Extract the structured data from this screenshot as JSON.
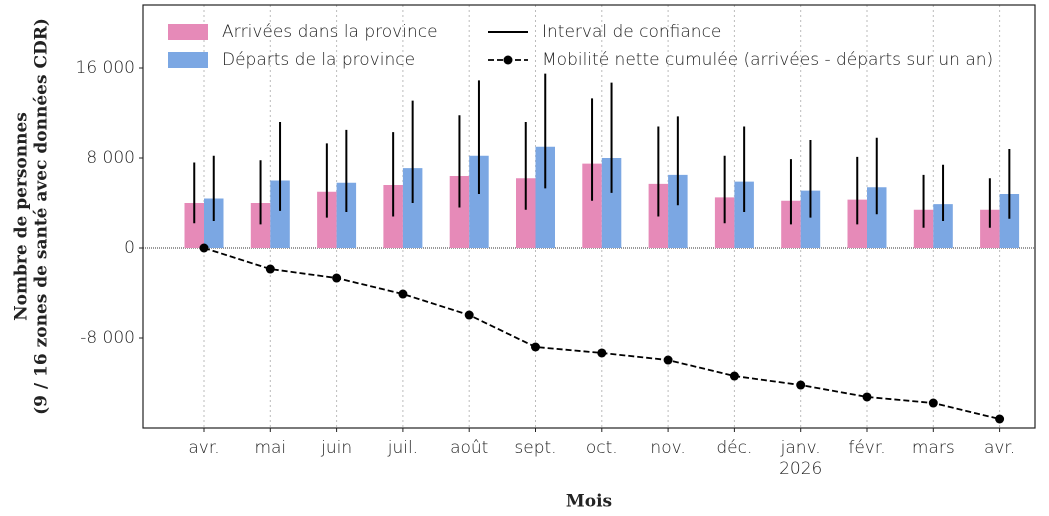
{
  "chart_data": {
    "type": "bar",
    "x_label": "Mois",
    "y_label": [
      "Nombre de personnes",
      "(9 / 16 zones de santé avec données CDR)"
    ],
    "categories": [
      "avr.",
      "mai",
      "juin",
      "juil.",
      "août",
      "sept.",
      "oct.",
      "nov.",
      "déc.",
      "janv. 2026",
      "févr.",
      "mars",
      "avr."
    ],
    "series": [
      {
        "name": "Arrivées dans la province",
        "color": "#e68ab8",
        "values": [
          4000,
          4000,
          5000,
          5600,
          6400,
          6200,
          7500,
          5700,
          4500,
          4200,
          4300,
          3400,
          3400
        ],
        "ci_low": [
          2200,
          2100,
          2700,
          2800,
          3600,
          3400,
          4200,
          2800,
          2200,
          2100,
          2100,
          1800,
          1800
        ],
        "ci_high": [
          7600,
          7800,
          9300,
          10300,
          11800,
          11200,
          13300,
          10800,
          8200,
          7900,
          8100,
          6500,
          6200
        ]
      },
      {
        "name": "Départs de la province",
        "color": "#7ba7e3",
        "values": [
          4400,
          6000,
          5800,
          7100,
          8200,
          9000,
          8000,
          6500,
          5900,
          5100,
          5400,
          3900,
          4800
        ],
        "ci_low": [
          2400,
          3300,
          3200,
          4000,
          4800,
          5300,
          4900,
          3800,
          3200,
          2700,
          3000,
          2400,
          2600
        ],
        "ci_high": [
          8200,
          11200,
          10500,
          13100,
          14900,
          15500,
          14700,
          11700,
          10800,
          9600,
          9800,
          7400,
          8800
        ]
      }
    ],
    "ci_name": "Interval de confiance",
    "ci_color": "#000000",
    "line": {
      "name": "Mobilité nette cumulée (arrivées - départs sur un an)",
      "color": "#000000",
      "values": [
        0,
        -1870,
        -2670,
        -4090,
        -5960,
        -8800,
        -9330,
        -9960,
        -11380,
        -12180,
        -13240,
        -13780,
        -15200
      ]
    },
    "ylim": [
      -16000,
      21600
    ],
    "yticks": [
      {
        "value": -8000,
        "label": "-8 000"
      },
      0,
      {
        "value": 8000,
        "label": "8 000"
      },
      {
        "value": 16000,
        "label": "16 000"
      }
    ],
    "grid": true,
    "legend": "upper left"
  }
}
